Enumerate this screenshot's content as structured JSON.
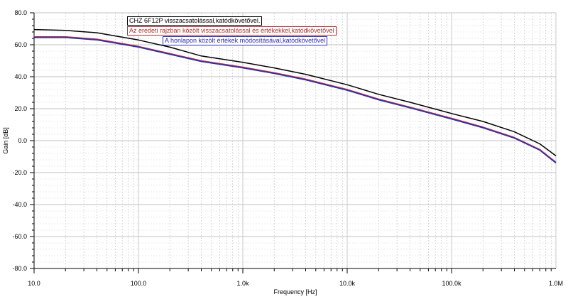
{
  "chart_data": {
    "type": "line",
    "xlabel": "Frequency [Hz]",
    "ylabel": "Gain [dB]",
    "xscale": "log",
    "xlim": [
      10,
      1000000
    ],
    "ylim": [
      -80,
      80
    ],
    "x_ticks": [
      10,
      100,
      1000,
      10000,
      100000,
      1000000
    ],
    "x_tick_labels": [
      "10.0",
      "100.0",
      "1.0k",
      "10.0k",
      "100.0k",
      "1.0M"
    ],
    "y_ticks": [
      80,
      60,
      40,
      20,
      0,
      -20,
      -40,
      -60,
      -80
    ],
    "y_tick_labels": [
      "80.0",
      "60.0",
      "40.0",
      "20.0",
      "0.0",
      "-20.0",
      "-40.0",
      "-60.0",
      "-80.0"
    ],
    "grid": true,
    "legend_placement": "top-center",
    "x": [
      10,
      20,
      40,
      100,
      200,
      400,
      1000,
      2000,
      4000,
      10000,
      20000,
      40000,
      100000,
      200000,
      400000,
      700000,
      1000000
    ],
    "series": [
      {
        "name": "CHZ 6F12P visszacsatolással,katódkövetővel.",
        "color": "#000000",
        "values": [
          69.5,
          69.0,
          67.5,
          63.0,
          58.5,
          53.0,
          49.0,
          45.5,
          41.5,
          35.0,
          29.0,
          24.0,
          17.0,
          12.0,
          5.5,
          -2.0,
          -9.5
        ]
      },
      {
        "name": "Az eredeti rajzban közölt visszacsatolással és értékekkel,katódkövetővel",
        "color": "#b03030",
        "values": [
          65.0,
          65.0,
          63.5,
          59.0,
          54.5,
          50.0,
          46.0,
          42.5,
          38.5,
          32.0,
          26.0,
          21.0,
          14.0,
          8.5,
          2.0,
          -5.5,
          -13.5
        ]
      },
      {
        "name": "A honlapon közölt értékek módosításával,katódkövetővel",
        "color": "#2b2bb8",
        "values": [
          64.5,
          64.5,
          63.0,
          58.5,
          54.0,
          49.5,
          45.5,
          42.0,
          38.0,
          31.5,
          25.5,
          20.5,
          13.5,
          8.0,
          1.5,
          -6.0,
          -14.0
        ]
      }
    ]
  }
}
